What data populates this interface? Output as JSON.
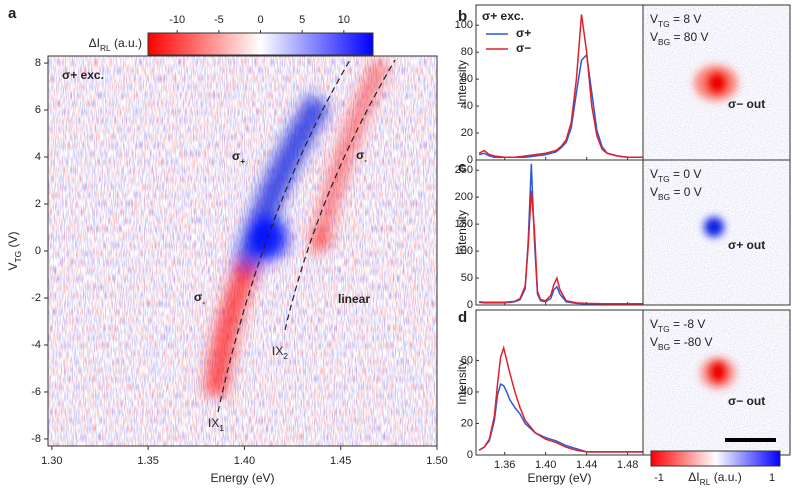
{
  "chart_data": [
    {
      "type": "heatmap",
      "panel_label": "a",
      "xlabel": "Energy (eV)",
      "ylabel": {
        "text": "V",
        "sub": "TG",
        "suffix": " (V)"
      },
      "xlim": [
        1.298,
        1.5
      ],
      "xticks": [
        {
          "value": 1.3,
          "label": "1.30"
        },
        1.35,
        {
          "value": 1.4,
          "label": "1.40"
        },
        1.45,
        {
          "value": 1.5,
          "label": "1.50"
        }
      ],
      "ylim": [
        -8.3,
        8.3
      ],
      "yticks": [
        -8,
        -6,
        -4,
        -2,
        0,
        2,
        4,
        6,
        8
      ],
      "colorbar": {
        "label": {
          "text": "ΔI",
          "sub": "RL",
          "suffix": " (a.u.)"
        },
        "lim": [
          -13.5,
          13.5
        ],
        "ticks": [
          -10,
          -5,
          0,
          5,
          10
        ],
        "colors": [
          "#ff0000",
          "#ffffff",
          "#0000ff"
        ]
      },
      "annotations": [
        {
          "text": "σ+ exc.",
          "color": "#2a4fd6"
        },
        {
          "text": "σ",
          "sub": "+",
          "color": "#2a4fd6"
        },
        {
          "text": "σ",
          "sub": "-",
          "color": "#e8000b"
        },
        {
          "text": "σ",
          "sub": "-",
          "color": "#e8000b"
        },
        {
          "text": "linear",
          "color": "#222222"
        },
        {
          "text": "IX",
          "sub": "2",
          "color": "#222222"
        },
        {
          "text": "IX",
          "sub": "1",
          "color": "#222222"
        }
      ]
    },
    {
      "type": "line",
      "panel_label": "b",
      "ylabel": "Intensity",
      "xlim": [
        1.332,
        1.495
      ],
      "xticks": [
        1.36,
        1.4,
        1.44,
        1.48
      ],
      "show_xtick_labels": false,
      "ylim": [
        0,
        115
      ],
      "yticks": [
        0,
        20,
        40,
        60,
        80,
        100
      ],
      "legend_title": "σ+ exc.",
      "legend_title_color": "#2a4fd6",
      "x": [
        1.335,
        1.34,
        1.345,
        1.35,
        1.36,
        1.37,
        1.38,
        1.39,
        1.4,
        1.41,
        1.415,
        1.42,
        1.425,
        1.43,
        1.435,
        1.44,
        1.445,
        1.45,
        1.455,
        1.46,
        1.47,
        1.48,
        1.49,
        1.495
      ],
      "series": [
        {
          "name": "σ+",
          "color": "#2a5ad8",
          "values": [
            4,
            5,
            3,
            2,
            2,
            2,
            2,
            3,
            4,
            6,
            9,
            13,
            24,
            50,
            74,
            78,
            50,
            22,
            10,
            5,
            3,
            2,
            2,
            2
          ]
        },
        {
          "name": "σ−",
          "color": "#e0202a",
          "values": [
            5,
            7,
            4,
            3,
            2,
            2,
            3,
            4,
            5,
            7,
            10,
            15,
            28,
            60,
            108,
            80,
            40,
            18,
            8,
            5,
            3,
            2,
            2,
            2
          ]
        }
      ]
    },
    {
      "type": "line",
      "panel_label": "c",
      "ylabel": "Intensity",
      "xlim": [
        1.332,
        1.495
      ],
      "xticks": [
        1.36,
        1.4,
        1.44,
        1.48
      ],
      "show_xtick_labels": false,
      "ylim": [
        0,
        269
      ],
      "yticks": [
        0,
        50,
        100,
        150,
        200,
        250
      ],
      "x": [
        1.335,
        1.34,
        1.35,
        1.36,
        1.37,
        1.375,
        1.38,
        1.383,
        1.386,
        1.389,
        1.392,
        1.395,
        1.4,
        1.405,
        1.408,
        1.411,
        1.414,
        1.42,
        1.43,
        1.44,
        1.46,
        1.48,
        1.495
      ],
      "series": [
        {
          "color": "#2a5ad8",
          "values": [
            5,
            4,
            4,
            4,
            6,
            10,
            30,
            120,
            262,
            120,
            20,
            8,
            6,
            12,
            28,
            34,
            20,
            6,
            3,
            2,
            2,
            2,
            2
          ]
        },
        {
          "color": "#e0202a",
          "values": [
            6,
            5,
            5,
            5,
            7,
            12,
            35,
            110,
            212,
            140,
            25,
            10,
            8,
            18,
            38,
            50,
            28,
            8,
            4,
            3,
            2,
            2,
            2
          ]
        }
      ]
    },
    {
      "type": "line",
      "panel_label": "d",
      "ylabel": "Intensity",
      "xlabel": "Energy (eV)",
      "xlim": [
        1.332,
        1.495
      ],
      "xticks": [
        1.36,
        {
          "value": 1.4,
          "label": "1.40"
        },
        1.44,
        1.48
      ],
      "show_xtick_labels": true,
      "ylim": [
        0,
        92
      ],
      "yticks": [
        0,
        20,
        40,
        60
      ],
      "x": [
        1.335,
        1.34,
        1.345,
        1.35,
        1.353,
        1.356,
        1.359,
        1.362,
        1.365,
        1.37,
        1.375,
        1.38,
        1.39,
        1.4,
        1.41,
        1.42,
        1.43,
        1.44,
        1.46,
        1.48,
        1.495
      ],
      "series": [
        {
          "color": "#2a5ad8",
          "values": [
            3,
            5,
            9,
            22,
            38,
            45,
            44,
            40,
            35,
            30,
            26,
            20,
            14,
            11,
            9,
            6,
            4,
            2,
            2,
            2,
            2
          ]
        },
        {
          "color": "#e0202a",
          "values": [
            3,
            5,
            10,
            25,
            45,
            62,
            68,
            60,
            52,
            40,
            30,
            22,
            14,
            10,
            8,
            5,
            3,
            2,
            2,
            2,
            2
          ]
        }
      ]
    }
  ],
  "image_panels": [
    {
      "lines": [
        {
          "text": "V",
          "sub": "TG",
          "suffix": " = 8 V"
        },
        {
          "text": "V",
          "sub": "BG",
          "suffix": " = 80 V"
        }
      ],
      "label": "σ− out",
      "color": "#e8000b"
    },
    {
      "lines": [
        {
          "text": "V",
          "sub": "TG",
          "suffix": " = 0 V"
        },
        {
          "text": "V",
          "sub": "BG",
          "suffix": " = 0 V"
        }
      ],
      "label": "σ+ out",
      "color": "#1a2fd0"
    },
    {
      "lines": [
        {
          "text": "V",
          "sub": "TG",
          "suffix": " = -8 V"
        },
        {
          "text": "V",
          "sub": "BG",
          "suffix": " = -80 V"
        }
      ],
      "label": "σ− out",
      "color": "#e8000b"
    }
  ],
  "image_colorbar": {
    "label": {
      "text": "ΔI",
      "sub": "RL",
      "suffix": " (a.u.)"
    },
    "lim": [
      -1,
      1
    ],
    "ticks": [
      -1,
      1
    ]
  }
}
